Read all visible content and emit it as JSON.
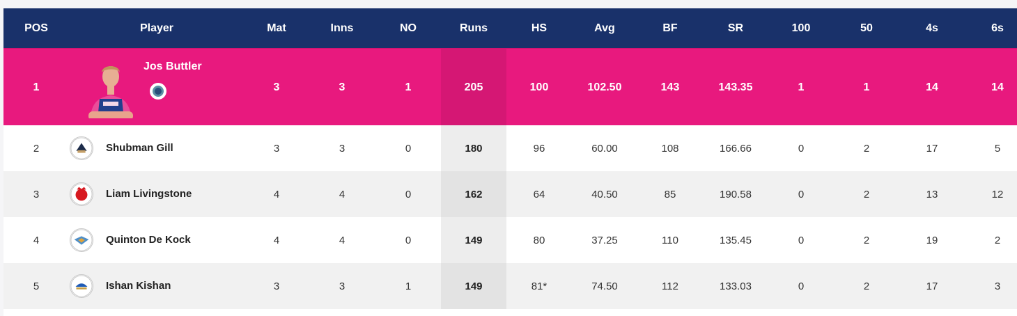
{
  "columns": [
    "POS",
    "Player",
    "Mat",
    "Inns",
    "NO",
    "Runs",
    "HS",
    "Avg",
    "BF",
    "SR",
    "100",
    "50",
    "4s",
    "6s"
  ],
  "colors": {
    "header_bg": "#19316a",
    "leader_bg": "#e8197e",
    "row_alt": "#f1f1f1"
  },
  "leader": {
    "pos": "1",
    "player": "Jos Buttler",
    "team_icon": "royals-logo-icon",
    "mat": "3",
    "inns": "3",
    "no": "1",
    "runs": "205",
    "hs": "100",
    "avg": "102.50",
    "bf": "143",
    "sr": "143.35",
    "hundreds": "1",
    "fifties": "1",
    "fours": "14",
    "sixes": "14"
  },
  "rows": [
    {
      "pos": "2",
      "player": "Shubman Gill",
      "team_icon": "titans-logo-icon",
      "mat": "3",
      "inns": "3",
      "no": "0",
      "runs": "180",
      "hs": "96",
      "avg": "60.00",
      "bf": "108",
      "sr": "166.66",
      "hundreds": "0",
      "fifties": "2",
      "fours": "17",
      "sixes": "5"
    },
    {
      "pos": "3",
      "player": "Liam Livingstone",
      "team_icon": "punjab-kings-logo-icon",
      "mat": "4",
      "inns": "4",
      "no": "0",
      "runs": "162",
      "hs": "64",
      "avg": "40.50",
      "bf": "85",
      "sr": "190.58",
      "hundreds": "0",
      "fifties": "2",
      "fours": "13",
      "sixes": "12"
    },
    {
      "pos": "4",
      "player": "Quinton De Kock",
      "team_icon": "super-giants-logo-icon",
      "mat": "4",
      "inns": "4",
      "no": "0",
      "runs": "149",
      "hs": "80",
      "avg": "37.25",
      "bf": "110",
      "sr": "135.45",
      "hundreds": "0",
      "fifties": "2",
      "fours": "19",
      "sixes": "2"
    },
    {
      "pos": "5",
      "player": "Ishan Kishan",
      "team_icon": "mumbai-indians-logo-icon",
      "mat": "3",
      "inns": "3",
      "no": "1",
      "runs": "149",
      "hs": "81*",
      "avg": "74.50",
      "bf": "112",
      "sr": "133.03",
      "hundreds": "0",
      "fifties": "2",
      "fours": "17",
      "sixes": "3"
    }
  ]
}
